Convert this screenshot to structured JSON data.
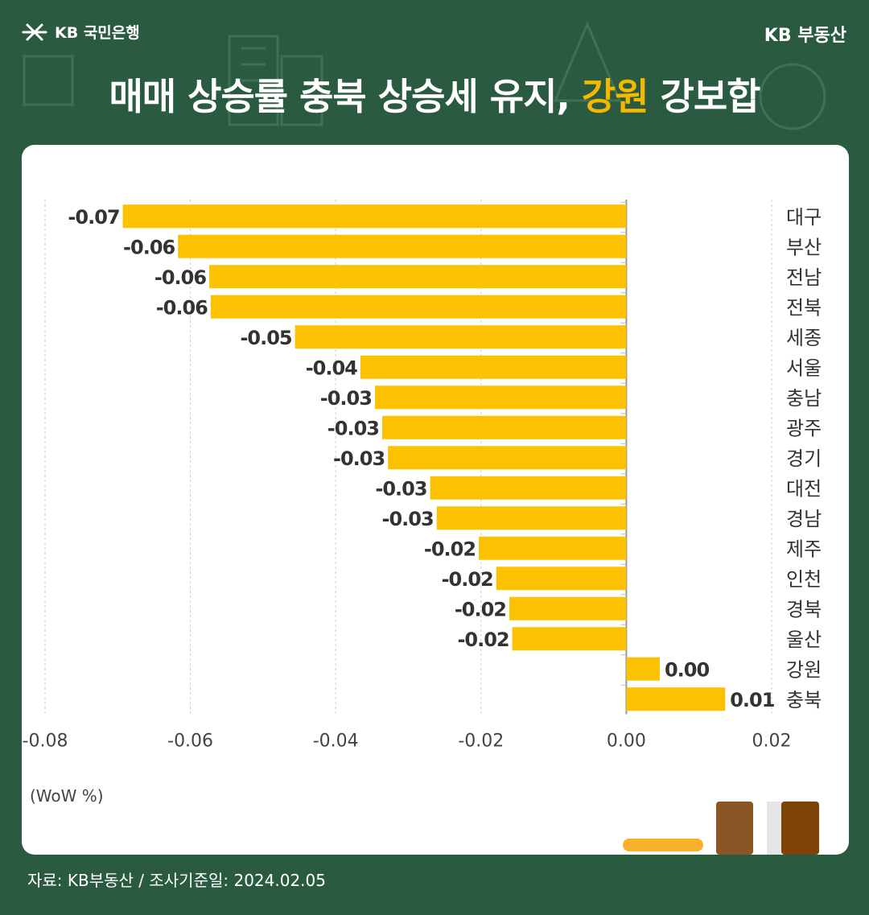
{
  "brand": {
    "bank_name": "KB 국민은행",
    "right_label": "KB 부동산"
  },
  "headline": {
    "part1": "매매 상승률 충북 상승세 유지, ",
    "highlight": "강원",
    "part2": " 강보합"
  },
  "unit_label": "(WoW %)",
  "footer": "자료: KB부동산 / 조사기준일: 2024.02.05",
  "colors": {
    "background": "#2a5a40",
    "bar": "#fcc100",
    "highlight": "#f5b800"
  },
  "chart_data": {
    "type": "bar",
    "orientation": "horizontal",
    "categories": [
      "대구",
      "부산",
      "전남",
      "전북",
      "세종",
      "서울",
      "충남",
      "광주",
      "경기",
      "대전",
      "경남",
      "제주",
      "인천",
      "경북",
      "울산",
      "강원",
      "충북"
    ],
    "values": [
      -0.07,
      -0.06,
      -0.06,
      -0.06,
      -0.05,
      -0.04,
      -0.03,
      -0.03,
      -0.03,
      -0.03,
      -0.03,
      -0.02,
      -0.02,
      -0.02,
      -0.02,
      0.0,
      0.01
    ],
    "bar_values": [
      -0.0693,
      -0.0617,
      -0.0574,
      -0.0572,
      -0.0456,
      -0.0366,
      -0.0346,
      -0.0336,
      -0.0328,
      -0.027,
      -0.0261,
      -0.0203,
      -0.0179,
      -0.0161,
      -0.0157,
      0.0046,
      0.0136
    ],
    "xlim": [
      -0.08,
      0.02
    ],
    "x_ticks": [
      "-0.08",
      "-0.06",
      "-0.04",
      "-0.02",
      "0.00",
      "0.02"
    ],
    "value_labels": [
      "-0.07",
      "-0.06",
      "-0.06",
      "-0.06",
      "-0.05",
      "-0.04",
      "-0.03",
      "-0.03",
      "-0.03",
      "-0.03",
      "-0.03",
      "-0.02",
      "-0.02",
      "-0.02",
      "-0.02",
      "0.00",
      "0.01"
    ],
    "grid": true
  }
}
